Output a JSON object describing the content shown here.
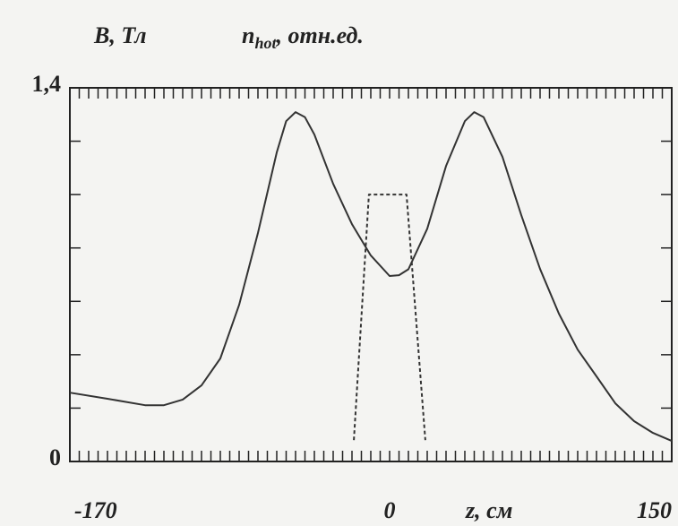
{
  "chart_data": {
    "type": "line",
    "y_label": "B, Тл",
    "y2_label": {
      "symbol": "n",
      "subscript": "hot",
      "unit": ", отн.ед."
    },
    "x_label": "z, см",
    "xlim": [
      -170,
      150
    ],
    "xticks": [
      -170,
      0,
      150
    ],
    "xminor_step": 5,
    "ylim": [
      0,
      1.4
    ],
    "yticks": [
      0,
      {
        "value": 1.4,
        "label": "1,4"
      }
    ],
    "yminor": [
      0.2,
      0.4,
      0.6,
      0.8,
      1.0,
      1.2
    ],
    "series": [
      {
        "name": "B",
        "color": "#333333",
        "style": "solid",
        "x": [
          -170,
          -150,
          -130,
          -120,
          -110,
          -100,
          -90,
          -80,
          -70,
          -60,
          -55,
          -50,
          -45,
          -40,
          -30,
          -20,
          -10,
          0,
          5,
          10,
          20,
          30,
          40,
          45,
          50,
          60,
          70,
          80,
          90,
          100,
          110,
          120,
          130,
          140,
          150
        ],
        "values": [
          0.258,
          0.235,
          0.211,
          0.211,
          0.232,
          0.285,
          0.386,
          0.587,
          0.856,
          1.158,
          1.275,
          1.309,
          1.29,
          1.225,
          1.04,
          0.889,
          0.772,
          0.695,
          0.698,
          0.72,
          0.872,
          1.107,
          1.275,
          1.309,
          1.29,
          1.141,
          0.923,
          0.721,
          0.554,
          0.419,
          0.319,
          0.218,
          0.151,
          0.107,
          0.077
        ]
      },
      {
        "name": "n_hot",
        "color": "#333333",
        "style": "dashed",
        "x": [
          -19,
          -11,
          9,
          19
        ],
        "values": [
          0.08,
          1.0,
          1.0,
          0.08
        ]
      }
    ]
  }
}
